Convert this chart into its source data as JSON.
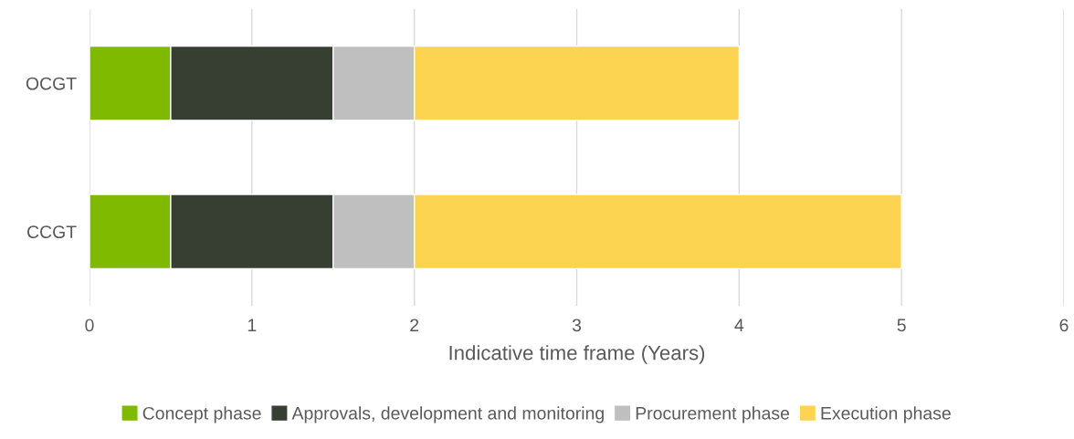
{
  "chart_data": {
    "type": "bar",
    "orientation": "horizontal",
    "stacked": true,
    "categories": [
      "OCGT",
      "CCGT"
    ],
    "series": [
      {
        "name": "Concept phase",
        "color": "#7fba00",
        "values": [
          0.5,
          0.5
        ]
      },
      {
        "name": "Approvals, development and monitoring",
        "color": "#373f33",
        "values": [
          1,
          1
        ]
      },
      {
        "name": "Procurement phase",
        "color": "#bfbfbf",
        "values": [
          0.5,
          0.5
        ]
      },
      {
        "name": "Execution phase",
        "color": "#fdd352",
        "values": [
          2,
          3
        ]
      }
    ],
    "xlabel": "Indicative time frame (Years)",
    "xlim": [
      0,
      6
    ],
    "xticks": [
      0,
      1,
      2,
      3,
      4,
      5,
      6
    ],
    "grid": "x",
    "legend": "bottom"
  }
}
